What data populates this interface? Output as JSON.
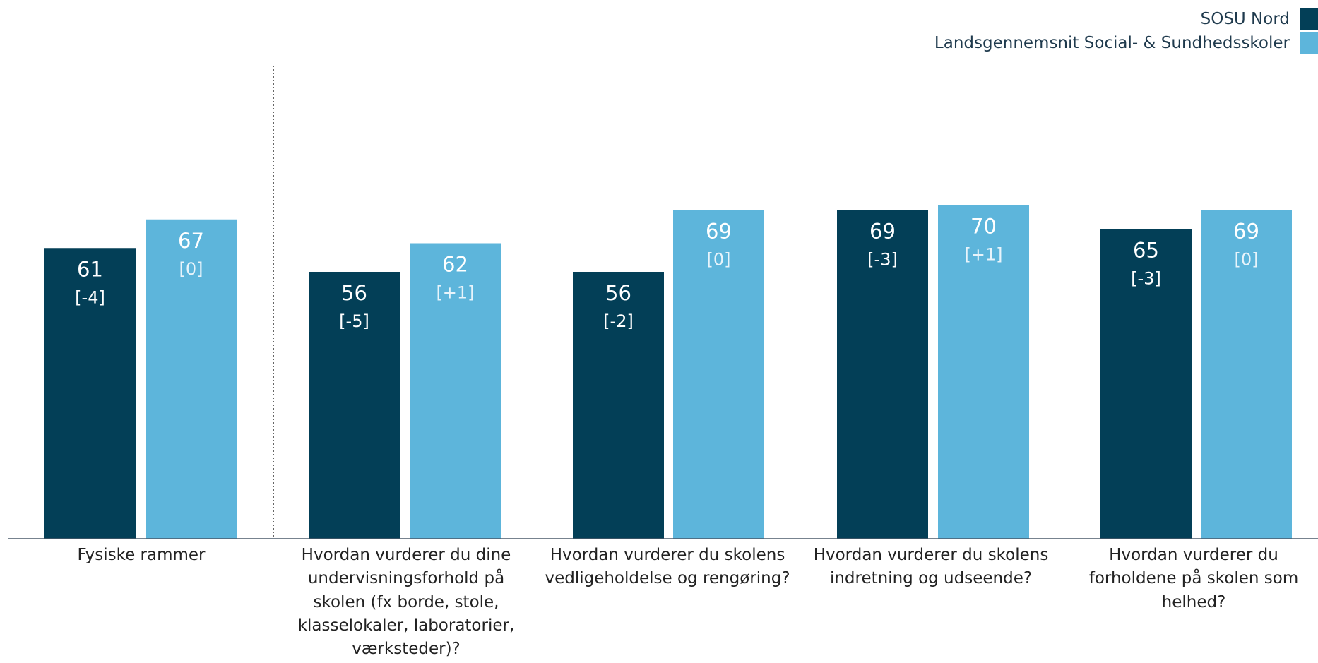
{
  "colors": {
    "series1": "#033f57",
    "series2": "#5db5db",
    "axis": "#4a5a6a"
  },
  "legend": [
    {
      "label": "SOSU Nord",
      "color": "#033f57"
    },
    {
      "label": "Landsgennemsnit Social- & Sundhedsskoler",
      "color": "#5db5db"
    }
  ],
  "chart_data": {
    "type": "bar",
    "ylim": [
      0,
      100
    ],
    "grid": false,
    "legend_position": "top-right",
    "categories": [
      "Fysiske rammer",
      "Hvordan vurderer du dine undervisningsforhold på skolen (fx borde, stole, klasselokaler, laboratorier, værksteder)?",
      "Hvordan vurderer du skolens vedligeholdelse og rengøring?",
      "Hvordan vurderer du skolens indretning og udseende?",
      "Hvordan vurderer du forholdene på skolen som helhed?"
    ],
    "series": [
      {
        "name": "SOSU Nord",
        "values": [
          61,
          56,
          56,
          69,
          65
        ],
        "changes": [
          "[-4]",
          "[-5]",
          "[-2]",
          "[-3]",
          "[-3]"
        ]
      },
      {
        "name": "Landsgennemsnit Social- & Sundhedsskoler",
        "values": [
          67,
          62,
          69,
          70,
          69
        ],
        "changes": [
          "[0]",
          "[+1]",
          "[0]",
          "[+1]",
          "[0]"
        ]
      }
    ]
  }
}
